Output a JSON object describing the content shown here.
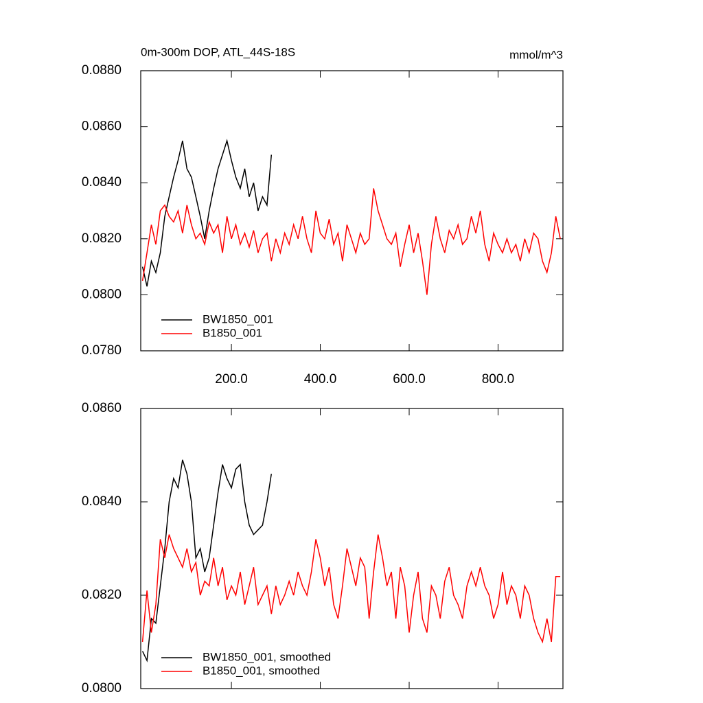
{
  "chart_data": [
    {
      "type": "line",
      "title": "0m-300m DOP, ATL_44S-18S",
      "units_label": "mmol/m^3",
      "x": [
        0,
        10,
        20,
        30,
        40,
        50,
        60,
        70,
        80,
        90,
        100,
        110,
        120,
        130,
        140,
        150,
        160,
        170,
        180,
        190,
        200,
        210,
        220,
        230,
        240,
        250,
        260,
        270,
        280,
        290,
        300,
        310,
        320,
        330,
        340,
        350,
        360,
        370,
        380,
        390,
        400,
        410,
        420,
        430,
        440,
        450,
        460,
        470,
        480,
        490,
        500,
        510,
        520,
        530,
        540,
        550,
        560,
        570,
        580,
        590,
        600,
        610,
        620,
        630,
        640,
        650,
        660,
        670,
        680,
        690,
        700,
        710,
        720,
        730,
        740,
        750,
        760,
        770,
        780,
        790,
        800,
        810,
        820,
        830,
        840,
        850,
        860,
        870,
        880,
        890,
        900,
        910,
        920,
        930,
        940
      ],
      "xlim": [
        -4,
        946
      ],
      "xticks": [
        {
          "value": 200,
          "label": "200.0"
        },
        {
          "value": 400,
          "label": "400.0"
        },
        {
          "value": 600,
          "label": "600.0"
        },
        {
          "value": 800,
          "label": "800.0"
        }
      ],
      "ylim": [
        0.078,
        0.088
      ],
      "yticks": [
        {
          "value": 0.078,
          "label": "0.0780"
        },
        {
          "value": 0.08,
          "label": "0.0800"
        },
        {
          "value": 0.082,
          "label": "0.0820"
        },
        {
          "value": 0.084,
          "label": "0.0840"
        },
        {
          "value": 0.086,
          "label": "0.0860"
        },
        {
          "value": 0.088,
          "label": "0.0880"
        }
      ],
      "legend": "lower left",
      "series": [
        {
          "name": "BW1850_001",
          "color": "#000000",
          "values": [
            0.081,
            0.0803,
            0.0812,
            0.0808,
            0.0815,
            0.0828,
            0.0835,
            0.0842,
            0.0848,
            0.0855,
            0.0845,
            0.0842,
            0.0835,
            0.0828,
            0.082,
            0.083,
            0.0838,
            0.0845,
            0.085,
            0.0855,
            0.0848,
            0.0842,
            0.0838,
            0.0845,
            0.0835,
            0.084,
            0.083,
            0.0835,
            0.0832,
            0.085,
            null,
            null,
            null,
            null,
            null,
            null,
            null,
            null,
            null,
            null,
            null,
            null,
            null,
            null,
            null,
            null,
            null,
            null,
            null,
            null,
            null,
            null,
            null,
            null,
            null,
            null,
            null,
            null,
            null,
            null,
            null,
            null,
            null,
            null,
            null,
            null,
            null,
            null,
            null,
            null,
            null,
            null,
            null,
            null,
            null,
            null,
            null,
            null,
            null,
            null,
            null,
            null,
            null,
            null,
            null,
            null,
            null,
            null,
            null,
            null,
            null,
            null,
            null,
            null,
            null
          ]
        },
        {
          "name": "B1850_001",
          "color": "#ff0000",
          "values": [
            0.0805,
            0.0815,
            0.0825,
            0.0818,
            0.083,
            0.0832,
            0.0828,
            0.0826,
            0.083,
            0.0822,
            0.0832,
            0.0825,
            0.082,
            0.0822,
            0.0818,
            0.0826,
            0.0822,
            0.0825,
            0.0815,
            0.0828,
            0.082,
            0.0825,
            0.0818,
            0.0822,
            0.0817,
            0.0823,
            0.0815,
            0.082,
            0.0822,
            0.0812,
            0.082,
            0.0815,
            0.0822,
            0.0818,
            0.0825,
            0.082,
            0.0828,
            0.082,
            0.0815,
            0.083,
            0.0822,
            0.082,
            0.0827,
            0.0818,
            0.0822,
            0.0812,
            0.0825,
            0.082,
            0.0815,
            0.0822,
            0.0818,
            0.082,
            0.0838,
            0.083,
            0.0825,
            0.082,
            0.0818,
            0.0822,
            0.081,
            0.0818,
            0.0825,
            0.0815,
            0.0822,
            0.0812,
            0.08,
            0.0818,
            0.0828,
            0.082,
            0.0815,
            0.0823,
            0.082,
            0.0825,
            0.0818,
            0.082,
            0.0828,
            0.0822,
            0.083,
            0.0818,
            0.0812,
            0.0822,
            0.0818,
            0.0815,
            0.082,
            0.0815,
            0.0818,
            0.0812,
            0.082,
            0.0815,
            0.0822,
            0.082,
            0.0812,
            0.0808,
            0.0815,
            0.0828,
            0.082
          ]
        }
      ]
    },
    {
      "type": "line",
      "x": [
        0,
        10,
        20,
        30,
        40,
        50,
        60,
        70,
        80,
        90,
        100,
        110,
        120,
        130,
        140,
        150,
        160,
        170,
        180,
        190,
        200,
        210,
        220,
        230,
        240,
        250,
        260,
        270,
        280,
        290,
        300,
        310,
        320,
        330,
        340,
        350,
        360,
        370,
        380,
        390,
        400,
        410,
        420,
        430,
        440,
        450,
        460,
        470,
        480,
        490,
        500,
        510,
        520,
        530,
        540,
        550,
        560,
        570,
        580,
        590,
        600,
        610,
        620,
        630,
        640,
        650,
        660,
        670,
        680,
        690,
        700,
        710,
        720,
        730,
        740,
        750,
        760,
        770,
        780,
        790,
        800,
        810,
        820,
        830,
        840,
        850,
        860,
        870,
        880,
        890,
        900,
        910,
        920,
        930,
        940
      ],
      "xlim": [
        -4,
        946
      ],
      "xticks": [
        200,
        400,
        600,
        800
      ],
      "ylim": [
        0.08,
        0.086
      ],
      "yticks": [
        {
          "value": 0.08,
          "label": "0.0800"
        },
        {
          "value": 0.082,
          "label": "0.0820"
        },
        {
          "value": 0.084,
          "label": "0.0840"
        },
        {
          "value": 0.086,
          "label": "0.0860"
        }
      ],
      "legend": "lower left",
      "series": [
        {
          "name": "BW1850_001, smoothed",
          "color": "#000000",
          "values": [
            0.0808,
            0.0806,
            0.0815,
            0.0814,
            0.0822,
            0.083,
            0.084,
            0.0845,
            0.0843,
            0.0849,
            0.0846,
            0.084,
            0.0828,
            0.083,
            0.0825,
            0.0828,
            0.0835,
            0.0842,
            0.0848,
            0.0845,
            0.0843,
            0.0847,
            0.0848,
            0.084,
            0.0835,
            0.0833,
            0.0834,
            0.0835,
            0.084,
            0.0846,
            null,
            null,
            null,
            null,
            null,
            null,
            null,
            null,
            null,
            null,
            null,
            null,
            null,
            null,
            null,
            null,
            null,
            null,
            null,
            null,
            null,
            null,
            null,
            null,
            null,
            null,
            null,
            null,
            null,
            null,
            null,
            null,
            null,
            null,
            null,
            null,
            null,
            null,
            null,
            null,
            null,
            null,
            null,
            null,
            null,
            null,
            null,
            null,
            null,
            null,
            null,
            null,
            null,
            null,
            null,
            null,
            null,
            null,
            null,
            null,
            null,
            null,
            null,
            null,
            null
          ]
        },
        {
          "name": "B1850_001, smoothed",
          "color": "#ff0000",
          "values": [
            0.081,
            0.0821,
            0.0812,
            0.0818,
            0.0832,
            0.0828,
            0.0833,
            0.083,
            0.0828,
            0.0826,
            0.083,
            0.0825,
            0.0827,
            0.082,
            0.0823,
            0.0822,
            0.0828,
            0.0822,
            0.0826,
            0.0819,
            0.0822,
            0.082,
            0.0825,
            0.0818,
            0.0822,
            0.0826,
            0.0818,
            0.082,
            0.0822,
            0.0816,
            0.0822,
            0.0818,
            0.082,
            0.0823,
            0.082,
            0.0825,
            0.0822,
            0.082,
            0.0825,
            0.0832,
            0.0828,
            0.0822,
            0.0826,
            0.0818,
            0.0815,
            0.0822,
            0.083,
            0.0826,
            0.0822,
            0.0828,
            0.0826,
            0.0815,
            0.0825,
            0.0833,
            0.0828,
            0.0822,
            0.0825,
            0.0815,
            0.0826,
            0.0822,
            0.0812,
            0.082,
            0.0825,
            0.0815,
            0.0812,
            0.0822,
            0.082,
            0.0815,
            0.0823,
            0.0826,
            0.082,
            0.0818,
            0.0815,
            0.0822,
            0.0825,
            0.0822,
            0.0826,
            0.0822,
            0.082,
            0.0815,
            0.0818,
            0.0825,
            0.0818,
            0.0822,
            0.082,
            0.0815,
            0.0822,
            0.082,
            0.0815,
            0.0812,
            0.081,
            0.0815,
            0.081,
            0.0824,
            0.0824
          ]
        }
      ]
    }
  ]
}
